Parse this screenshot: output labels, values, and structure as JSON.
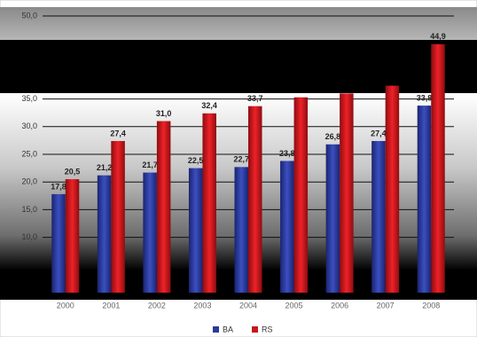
{
  "chart_data": {
    "type": "bar",
    "categories": [
      "2000",
      "2001",
      "2002",
      "2003",
      "2004",
      "2005",
      "2006",
      "2007",
      "2008"
    ],
    "series": [
      {
        "name": "BA",
        "color": "#2b3a9c",
        "values": [
          17.8,
          21.2,
          21.7,
          22.5,
          22.7,
          23.8,
          26.8,
          27.4,
          33.8
        ],
        "value_labels": [
          "17,8",
          "21,2",
          "21,7",
          "22,5",
          "22,7",
          "23,8",
          "26,8",
          "27,4",
          "33,8"
        ]
      },
      {
        "name": "RS",
        "color": "#c8161c",
        "values": [
          20.5,
          27.4,
          31.0,
          32.4,
          33.7,
          35.3,
          36.0,
          37.4,
          44.9
        ],
        "value_labels": [
          "20,5",
          "27,4",
          "31,0",
          "32,4",
          "33,7",
          null,
          null,
          null,
          "44,9"
        ]
      }
    ],
    "ylim": [
      0,
      50
    ],
    "yticks": [
      {
        "value": 10,
        "label": "10,0"
      },
      {
        "value": 15,
        "label": "15,0"
      },
      {
        "value": 20,
        "label": "20,0"
      },
      {
        "value": 25,
        "label": "25,0"
      },
      {
        "value": 30,
        "label": "30,0"
      },
      {
        "value": 35,
        "label": "35,0"
      },
      {
        "value": 50,
        "label": "50,0"
      }
    ],
    "grid": true
  }
}
